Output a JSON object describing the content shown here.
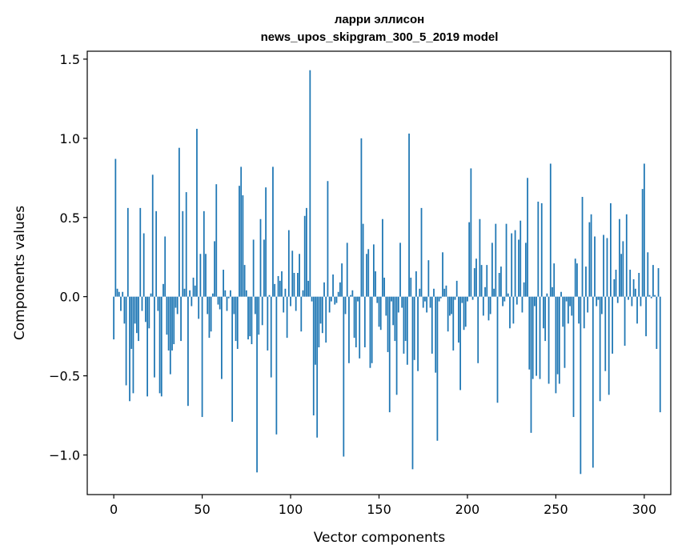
{
  "chart_data": {
    "type": "bar",
    "title": "ларри эллисон",
    "subtitle": "news_upos_skipgram_300_5_2019 model",
    "xlabel": "Vector components",
    "ylabel": "Components values",
    "xlim": [
      -15,
      315
    ],
    "ylim": [
      -1.25,
      1.55
    ],
    "xticks": [
      0,
      50,
      100,
      150,
      200,
      250,
      300
    ],
    "xtick_labels": [
      "0",
      "50",
      "100",
      "150",
      "200",
      "250",
      "300"
    ],
    "yticks": [
      -1.0,
      -0.5,
      0.0,
      0.5,
      1.0,
      1.5
    ],
    "ytick_labels": [
      "−1.0",
      "−0.5",
      "0.0",
      "0.5",
      "1.0",
      "1.5"
    ],
    "grid": false,
    "bar_color": "#1f77b4",
    "values": [
      -0.27,
      0.87,
      0.05,
      0.03,
      -0.09,
      0.03,
      -0.17,
      -0.56,
      0.56,
      -0.66,
      -0.33,
      -0.61,
      -0.17,
      -0.23,
      -0.28,
      0.56,
      -0.09,
      0.4,
      -0.16,
      -0.63,
      -0.2,
      0.02,
      0.77,
      -0.51,
      0.54,
      -0.09,
      -0.61,
      -0.63,
      0.08,
      0.38,
      -0.24,
      -0.34,
      -0.49,
      -0.34,
      -0.3,
      -0.07,
      -0.11,
      0.94,
      -0.28,
      0.54,
      0.05,
      0.66,
      -0.69,
      0.04,
      -0.06,
      0.12,
      0.07,
      1.06,
      -0.14,
      0.27,
      -0.76,
      0.54,
      0.27,
      -0.11,
      -0.26,
      -0.22,
      0.02,
      0.35,
      0.71,
      -0.05,
      -0.08,
      -0.52,
      0.17,
      0.04,
      -0.09,
      -0.01,
      0.04,
      -0.79,
      -0.11,
      -0.28,
      -0.33,
      0.7,
      0.82,
      0.64,
      0.2,
      0.04,
      -0.27,
      -0.25,
      -0.3,
      0.36,
      -0.11,
      -1.11,
      -0.24,
      0.49,
      -0.18,
      0.36,
      0.69,
      -0.34,
      0.01,
      -0.51,
      0.82,
      0.08,
      -0.87,
      0.13,
      0.1,
      0.16,
      -0.1,
      0.05,
      -0.26,
      0.42,
      -0.06,
      0.29,
      0.15,
      -0.09,
      0.15,
      0.27,
      -0.22,
      0.04,
      0.51,
      0.56,
      0.1,
      1.43,
      -0.03,
      -0.75,
      -0.43,
      -0.89,
      -0.32,
      -0.17,
      -0.23,
      0.09,
      -0.29,
      0.73,
      -0.1,
      -0.03,
      0.14,
      -0.05,
      -0.04,
      0.03,
      0.09,
      0.21,
      -1.01,
      -0.11,
      0.34,
      -0.42,
      0.01,
      0.04,
      -0.26,
      -0.32,
      -0.03,
      -0.39,
      1.0,
      0.46,
      -0.32,
      0.27,
      0.3,
      -0.45,
      -0.42,
      0.33,
      0.16,
      -0.04,
      -0.19,
      -0.21,
      0.49,
      0.12,
      -0.12,
      -0.35,
      -0.73,
      -0.03,
      -0.18,
      -0.28,
      -0.62,
      -0.1,
      0.34,
      -0.07,
      -0.36,
      -0.28,
      -0.43,
      1.03,
      0.12,
      -1.09,
      -0.4,
      0.16,
      -0.47,
      0.05,
      0.56,
      -0.07,
      -0.03,
      -0.1,
      0.23,
      -0.07,
      -0.36,
      0.05,
      -0.48,
      -0.91,
      -0.03,
      -0.01,
      0.28,
      0.05,
      0.07,
      -0.22,
      -0.12,
      -0.11,
      -0.34,
      -0.02,
      0.1,
      -0.29,
      -0.59,
      -0.04,
      -0.21,
      -0.19,
      -0.03,
      0.47,
      0.81,
      -0.02,
      0.18,
      0.24,
      -0.42,
      0.49,
      0.2,
      -0.12,
      0.06,
      0.2,
      -0.15,
      -0.11,
      0.34,
      0.05,
      0.46,
      -0.67,
      0.15,
      0.19,
      -0.06,
      -0.03,
      0.46,
      0.02,
      -0.2,
      0.4,
      -0.17,
      0.42,
      -0.05,
      0.36,
      0.48,
      -0.1,
      0.09,
      0.34,
      0.75,
      -0.46,
      -0.86,
      -0.52,
      -0.06,
      -0.5,
      0.6,
      -0.52,
      0.59,
      -0.2,
      -0.28,
      0.02,
      -0.55,
      0.84,
      0.06,
      0.21,
      -0.61,
      -0.49,
      -0.55,
      0.03,
      -0.19,
      -0.45,
      -0.03,
      -0.17,
      -0.06,
      -0.12,
      -0.76,
      0.24,
      0.21,
      -0.17,
      -1.12,
      0.63,
      -0.2,
      0.19,
      -0.1,
      0.47,
      0.52,
      -1.08,
      0.38,
      -0.06,
      -0.02,
      -0.66,
      -0.11,
      0.39,
      -0.47,
      0.37,
      -0.62,
      0.59,
      -0.36,
      0.11,
      0.17,
      -0.04,
      0.49,
      0.27,
      0.35,
      -0.31,
      0.52,
      -0.02,
      0.17,
      -0.06,
      0.11,
      0.05,
      -0.17,
      0.15,
      -0.06,
      0.68,
      0.84,
      -0.25,
      0.28,
      0.01,
      -0.01,
      0.2,
      0.01,
      -0.33,
      0.18,
      -0.73
    ]
  }
}
